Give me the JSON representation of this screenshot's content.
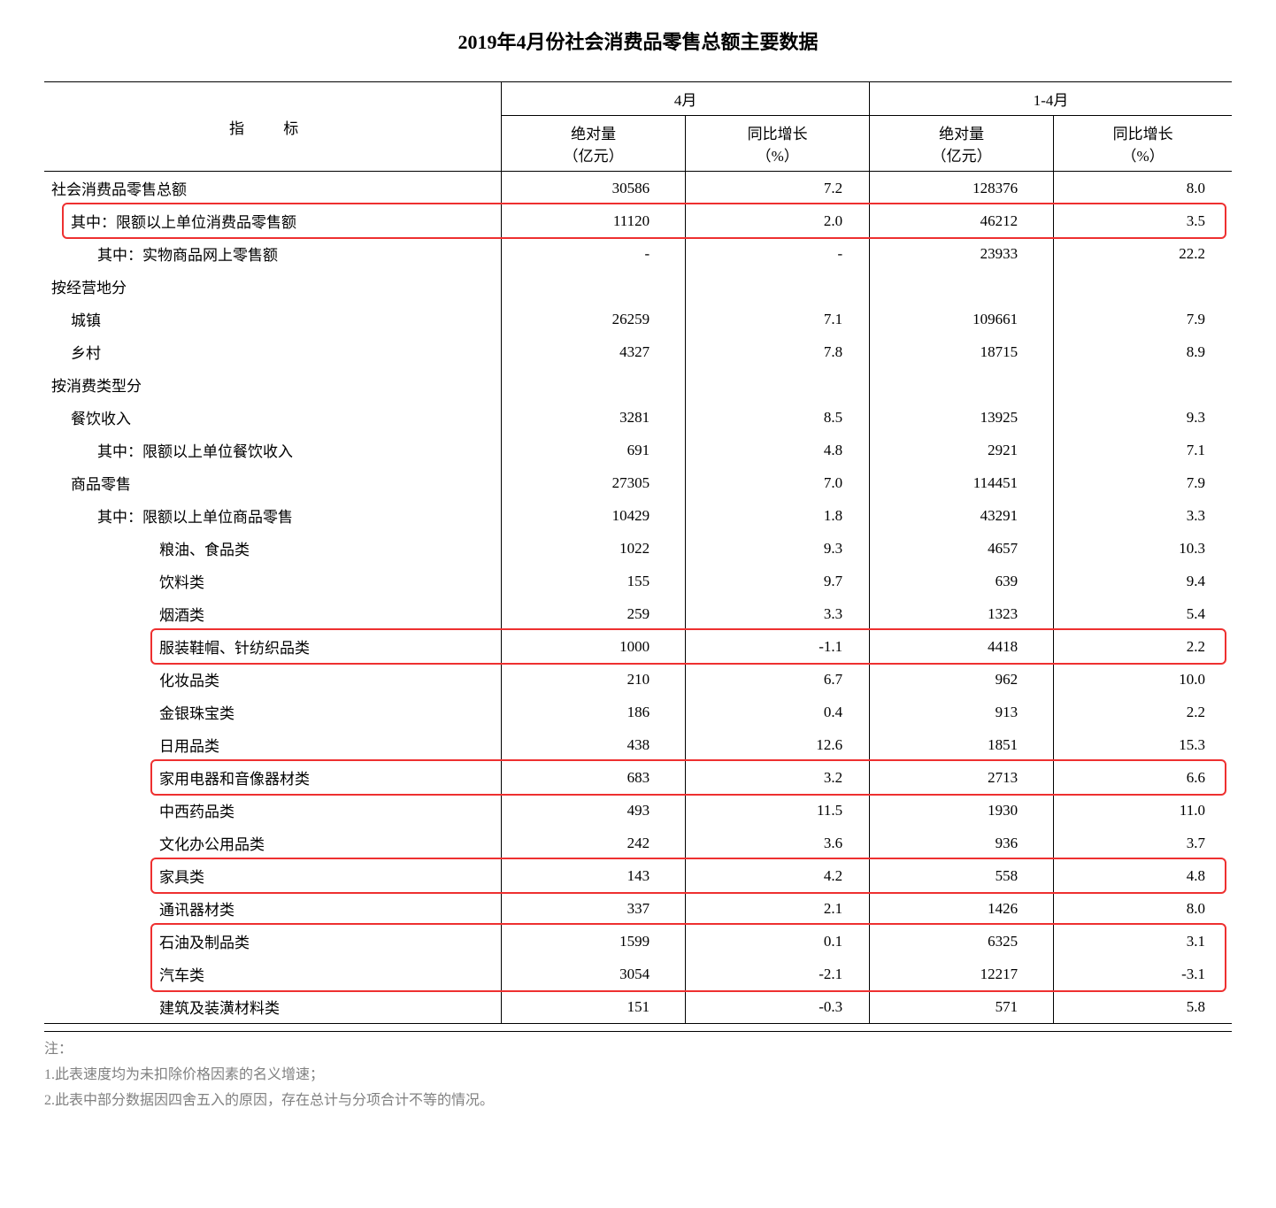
{
  "title": "2019年4月份社会消费品零售总额主要数据",
  "headers": {
    "indicator": "指  标",
    "april": "4月",
    "jan_april": "1-4月",
    "abs_amount": "绝对量",
    "abs_unit": "（亿元）",
    "yoy_growth": "同比增长",
    "yoy_unit": "（%）"
  },
  "rows": [
    {
      "label": "社会消费品零售总额",
      "indent": 0,
      "a1": "30586",
      "a2": "7.2",
      "b1": "128376",
      "b2": "8.0"
    },
    {
      "label": "其中：限额以上单位消费品零售额",
      "indent": 1,
      "a1": "11120",
      "a2": "2.0",
      "b1": "46212",
      "b2": "3.5",
      "highlight": true
    },
    {
      "label": "其中：实物商品网上零售额",
      "indent": 2,
      "a1": "-",
      "a2": "-",
      "b1": "23933",
      "b2": "22.2"
    },
    {
      "label": "按经营地分",
      "indent": 0,
      "a1": "",
      "a2": "",
      "b1": "",
      "b2": ""
    },
    {
      "label": "城镇",
      "indent": 1,
      "a1": "26259",
      "a2": "7.1",
      "b1": "109661",
      "b2": "7.9"
    },
    {
      "label": "乡村",
      "indent": 1,
      "a1": "4327",
      "a2": "7.8",
      "b1": "18715",
      "b2": "8.9"
    },
    {
      "label": "按消费类型分",
      "indent": 0,
      "a1": "",
      "a2": "",
      "b1": "",
      "b2": ""
    },
    {
      "label": "餐饮收入",
      "indent": 1,
      "a1": "3281",
      "a2": "8.5",
      "b1": "13925",
      "b2": "9.3"
    },
    {
      "label": "其中：限额以上单位餐饮收入",
      "indent": 2,
      "a1": "691",
      "a2": "4.8",
      "b1": "2921",
      "b2": "7.1"
    },
    {
      "label": "商品零售",
      "indent": 1,
      "a1": "27305",
      "a2": "7.0",
      "b1": "114451",
      "b2": "7.9"
    },
    {
      "label": "其中：限额以上单位商品零售",
      "indent": 2,
      "a1": "10429",
      "a2": "1.8",
      "b1": "43291",
      "b2": "3.3"
    },
    {
      "label": "粮油、食品类",
      "indent": 3,
      "a1": "1022",
      "a2": "9.3",
      "b1": "4657",
      "b2": "10.3"
    },
    {
      "label": "饮料类",
      "indent": 3,
      "a1": "155",
      "a2": "9.7",
      "b1": "639",
      "b2": "9.4"
    },
    {
      "label": "烟酒类",
      "indent": 3,
      "a1": "259",
      "a2": "3.3",
      "b1": "1323",
      "b2": "5.4"
    },
    {
      "label": "服装鞋帽、针纺织品类",
      "indent": 3,
      "a1": "1000",
      "a2": "-1.1",
      "b1": "4418",
      "b2": "2.2",
      "highlight": true
    },
    {
      "label": "化妆品类",
      "indent": 3,
      "a1": "210",
      "a2": "6.7",
      "b1": "962",
      "b2": "10.0"
    },
    {
      "label": "金银珠宝类",
      "indent": 3,
      "a1": "186",
      "a2": "0.4",
      "b1": "913",
      "b2": "2.2"
    },
    {
      "label": "日用品类",
      "indent": 3,
      "a1": "438",
      "a2": "12.6",
      "b1": "1851",
      "b2": "15.3"
    },
    {
      "label": "家用电器和音像器材类",
      "indent": 3,
      "a1": "683",
      "a2": "3.2",
      "b1": "2713",
      "b2": "6.6",
      "highlight": true
    },
    {
      "label": "中西药品类",
      "indent": 3,
      "a1": "493",
      "a2": "11.5",
      "b1": "1930",
      "b2": "11.0"
    },
    {
      "label": "文化办公用品类",
      "indent": 3,
      "a1": "242",
      "a2": "3.6",
      "b1": "936",
      "b2": "3.7"
    },
    {
      "label": "家具类",
      "indent": 3,
      "a1": "143",
      "a2": "4.2",
      "b1": "558",
      "b2": "4.8",
      "highlight": true
    },
    {
      "label": "通讯器材类",
      "indent": 3,
      "a1": "337",
      "a2": "2.1",
      "b1": "1426",
      "b2": "8.0"
    },
    {
      "label": "石油及制品类",
      "indent": 3,
      "a1": "1599",
      "a2": "0.1",
      "b1": "6325",
      "b2": "3.1",
      "highlight": true,
      "hl_group": "petro-auto"
    },
    {
      "label": "汽车类",
      "indent": 3,
      "a1": "3054",
      "a2": "-2.1",
      "b1": "12217",
      "b2": "-3.1",
      "highlight": true,
      "hl_group": "petro-auto"
    },
    {
      "label": "建筑及装潢材料类",
      "indent": 3,
      "a1": "151",
      "a2": "-0.3",
      "b1": "571",
      "b2": "5.8"
    }
  ],
  "notes": {
    "prefix": "注：",
    "n1": "1.此表速度均为未扣除价格因素的名义增速；",
    "n2": "2.此表中部分数据因四舍五入的原因，存在总计与分项合计不等的情况。"
  },
  "style": {
    "highlight_color": "#ee3030",
    "col_widths_pct": [
      38.5,
      15.5,
      15.5,
      15.5,
      15
    ]
  }
}
